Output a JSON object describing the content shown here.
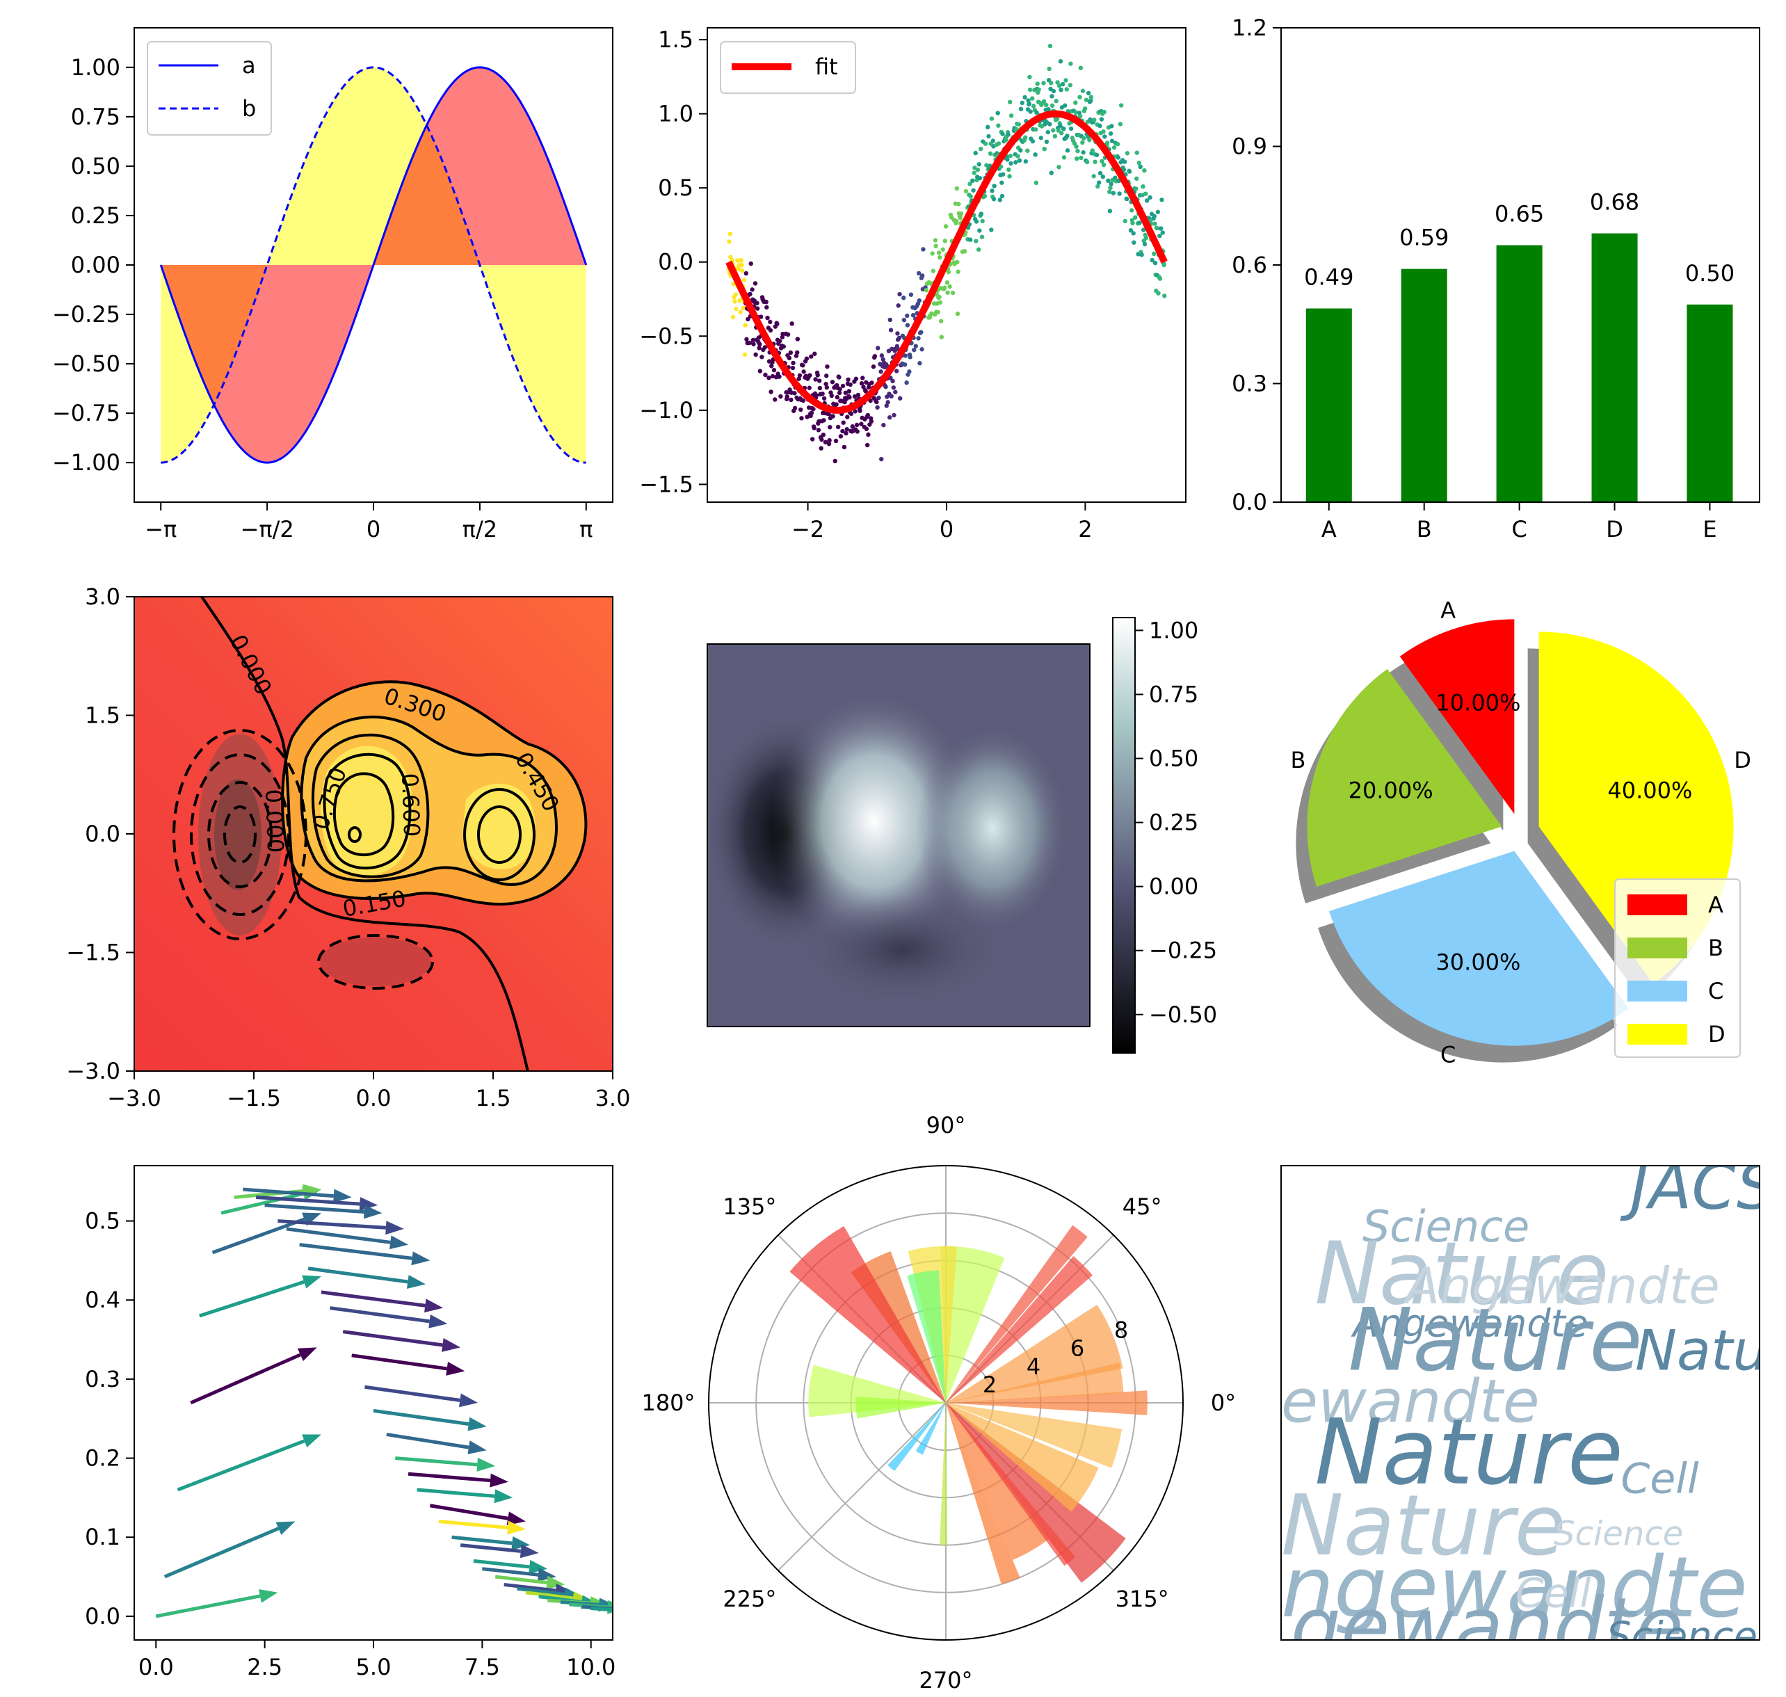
{
  "chart_data": [
    {
      "id": "fill-between",
      "type": "line",
      "title": "",
      "xlabel": "",
      "ylabel": "",
      "xlim": [
        -3.5343,
        3.5343
      ],
      "ylim": [
        -1.2,
        1.2
      ],
      "xticks": [
        -3.14159,
        -1.5708,
        0,
        1.5708,
        3.14159
      ],
      "xtick_labels": [
        "−π",
        "−π/2",
        "0",
        "π/2",
        "π"
      ],
      "yticks": [
        1.0,
        0.75,
        0.5,
        0.25,
        0.0,
        -0.25,
        -0.5,
        -0.75,
        -1.0
      ],
      "ytick_labels": [
        "1.00",
        "0.75",
        "0.50",
        "0.25",
        "0.00",
        "−0.25",
        "−0.50",
        "−0.75",
        "−1.00"
      ],
      "series": [
        {
          "name": "a",
          "function": "sin(x)",
          "style": "solid",
          "color": "#0000ff"
        },
        {
          "name": "b",
          "function": "cos(x)",
          "style": "dashed",
          "color": "#0000ff"
        }
      ],
      "fills": [
        {
          "between": "a and 0",
          "color": "#ff0000",
          "alpha": 0.5
        },
        {
          "between": "b and 0",
          "color": "#ffff00",
          "alpha": 0.5
        }
      ],
      "legend": {
        "position": "top-left",
        "entries": [
          "a",
          "b"
        ]
      },
      "grid": false
    },
    {
      "id": "scatter-fit",
      "type": "scatter",
      "title": "",
      "xlim": [
        -3.45,
        3.45
      ],
      "ylim": [
        -1.62,
        1.58
      ],
      "xticks": [
        -2,
        0,
        2
      ],
      "xtick_labels": [
        "−2",
        "0",
        "2"
      ],
      "yticks": [
        1.5,
        1.0,
        0.5,
        0.0,
        -0.5,
        -1.0,
        -1.5
      ],
      "ytick_labels": [
        "1.5",
        "1.0",
        "0.5",
        "0.0",
        "−0.5",
        "−1.0",
        "−1.5"
      ],
      "points": "1000 noisy samples of y = sin(x) + noise, x in [-π, π], colored by viridis",
      "fit_line": {
        "name": "fit",
        "function": "sin(x)",
        "color": "#ff0000"
      },
      "legend": {
        "position": "top-left",
        "entries": [
          "fit"
        ]
      },
      "grid": false
    },
    {
      "id": "bar",
      "type": "bar",
      "title": "",
      "categories": [
        "A",
        "B",
        "C",
        "D",
        "E"
      ],
      "values": [
        0.49,
        0.59,
        0.65,
        0.68,
        0.5
      ],
      "value_labels": [
        "0.49",
        "0.59",
        "0.65",
        "0.68",
        "0.50"
      ],
      "ylim": [
        0,
        1.2
      ],
      "yticks": [
        0.0,
        0.3,
        0.6,
        0.9,
        1.2
      ],
      "ytick_labels": [
        "0.0",
        "0.3",
        "0.6",
        "0.9",
        "1.2"
      ],
      "color": "#008000",
      "grid": false
    },
    {
      "id": "contour",
      "type": "heatmap",
      "title": "",
      "xlim": [
        -3,
        3
      ],
      "ylim": [
        -3,
        3
      ],
      "xticks": [
        -3,
        -1.5,
        0,
        1.5,
        3
      ],
      "xtick_labels": [
        "−3.0",
        "−1.5",
        "0.0",
        "1.5",
        "3.0"
      ],
      "yticks": [
        3,
        1.5,
        0,
        -1.5,
        -3
      ],
      "ytick_labels": [
        "3.0",
        "1.5",
        "0.0",
        "−1.5",
        "−3.0"
      ],
      "contour_labels": [
        "0.000",
        "0.300",
        "0.450",
        "0.600",
        "0.750",
        "0.150",
        "0.000"
      ],
      "colormap": "autumn",
      "grid": false
    },
    {
      "id": "image",
      "type": "heatmap",
      "title": "",
      "colormap": "bone",
      "colorbar_ticks": [
        1.0,
        0.75,
        0.5,
        0.25,
        0.0,
        -0.25,
        -0.5
      ],
      "colorbar_labels": [
        "1.00",
        "0.75",
        "0.50",
        "0.25",
        "0.00",
        "−0.25",
        "−0.50"
      ],
      "colorbar_range": [
        -0.65,
        1.05
      ]
    },
    {
      "id": "pie",
      "type": "pie",
      "title": "",
      "labels": [
        "A",
        "B",
        "C",
        "D"
      ],
      "values": [
        10,
        20,
        30,
        40
      ],
      "pct_labels": [
        "10.00%",
        "20.00%",
        "30.00%",
        "40.00%"
      ],
      "colors": [
        "#ff0000",
        "#9acd32",
        "#87cefa",
        "#ffff00"
      ],
      "explode": [
        0.1,
        0.1,
        0.1,
        0.1
      ],
      "shadow": true,
      "legend": {
        "position": "lower-right",
        "entries": [
          "A",
          "B",
          "C",
          "D"
        ]
      }
    },
    {
      "id": "quiver",
      "type": "scatter",
      "title": "",
      "xlim": [
        -0.5,
        10.5
      ],
      "ylim": [
        -0.03,
        0.57
      ],
      "xticks": [
        0,
        2.5,
        5,
        7.5,
        10
      ],
      "xtick_labels": [
        "0.0",
        "2.5",
        "5.0",
        "7.5",
        "10.0"
      ],
      "yticks": [
        0.5,
        0.4,
        0.3,
        0.2,
        0.1,
        0.0
      ],
      "ytick_labels": [
        "0.5",
        "0.4",
        "0.3",
        "0.2",
        "0.1",
        "0.0"
      ],
      "arrows": [
        {
          "x": 0.0,
          "y": 0.0,
          "u": 2.8,
          "v": 0.03
        },
        {
          "x": 0.2,
          "y": 0.05,
          "u": 3.0,
          "v": 0.07
        },
        {
          "x": 0.5,
          "y": 0.16,
          "u": 3.3,
          "v": 0.07
        },
        {
          "x": 0.8,
          "y": 0.27,
          "u": 2.9,
          "v": 0.07
        },
        {
          "x": 1.0,
          "y": 0.38,
          "u": 2.8,
          "v": 0.05
        },
        {
          "x": 1.3,
          "y": 0.46,
          "u": 2.5,
          "v": 0.05
        },
        {
          "x": 1.5,
          "y": 0.51,
          "u": 2.3,
          "v": 0.03
        },
        {
          "x": 1.8,
          "y": 0.53,
          "u": 2.0,
          "v": 0.01
        },
        {
          "x": 2.0,
          "y": 0.54,
          "u": 2.5,
          "v": -0.01
        },
        {
          "x": 2.3,
          "y": 0.53,
          "u": 2.8,
          "v": -0.01
        },
        {
          "x": 2.5,
          "y": 0.52,
          "u": 2.7,
          "v": -0.01
        },
        {
          "x": 2.8,
          "y": 0.5,
          "u": 2.9,
          "v": -0.01
        },
        {
          "x": 3.0,
          "y": 0.49,
          "u": 2.8,
          "v": -0.02
        },
        {
          "x": 3.3,
          "y": 0.47,
          "u": 3.0,
          "v": -0.02
        },
        {
          "x": 3.5,
          "y": 0.44,
          "u": 2.7,
          "v": -0.02
        },
        {
          "x": 3.8,
          "y": 0.41,
          "u": 2.8,
          "v": -0.02
        },
        {
          "x": 4.0,
          "y": 0.39,
          "u": 2.7,
          "v": -0.02
        },
        {
          "x": 4.3,
          "y": 0.36,
          "u": 2.7,
          "v": -0.02
        },
        {
          "x": 4.5,
          "y": 0.33,
          "u": 2.6,
          "v": -0.02
        },
        {
          "x": 4.8,
          "y": 0.29,
          "u": 2.6,
          "v": -0.02
        },
        {
          "x": 5.0,
          "y": 0.26,
          "u": 2.6,
          "v": -0.02
        },
        {
          "x": 5.3,
          "y": 0.23,
          "u": 2.3,
          "v": -0.02
        },
        {
          "x": 5.5,
          "y": 0.2,
          "u": 2.3,
          "v": -0.01
        },
        {
          "x": 5.8,
          "y": 0.18,
          "u": 2.3,
          "v": -0.01
        },
        {
          "x": 6.0,
          "y": 0.16,
          "u": 2.2,
          "v": -0.01
        },
        {
          "x": 6.3,
          "y": 0.14,
          "u": 2.2,
          "v": -0.02
        },
        {
          "x": 6.5,
          "y": 0.12,
          "u": 2.0,
          "v": -0.01
        },
        {
          "x": 6.8,
          "y": 0.1,
          "u": 1.8,
          "v": -0.01
        },
        {
          "x": 7.0,
          "y": 0.09,
          "u": 1.8,
          "v": -0.01
        },
        {
          "x": 7.3,
          "y": 0.07,
          "u": 1.7,
          "v": -0.01
        },
        {
          "x": 7.5,
          "y": 0.06,
          "u": 1.7,
          "v": -0.01
        },
        {
          "x": 7.8,
          "y": 0.05,
          "u": 1.6,
          "v": -0.01
        },
        {
          "x": 8.0,
          "y": 0.04,
          "u": 1.6,
          "v": -0.01
        },
        {
          "x": 8.3,
          "y": 0.035,
          "u": 1.5,
          "v": -0.01
        },
        {
          "x": 8.5,
          "y": 0.03,
          "u": 1.5,
          "v": -0.01
        },
        {
          "x": 8.8,
          "y": 0.025,
          "u": 1.4,
          "v": -0.01
        },
        {
          "x": 9.0,
          "y": 0.02,
          "u": 1.4,
          "v": -0.005
        },
        {
          "x": 9.3,
          "y": 0.018,
          "u": 1.3,
          "v": -0.005
        },
        {
          "x": 9.5,
          "y": 0.015,
          "u": 1.3,
          "v": -0.005
        },
        {
          "x": 9.8,
          "y": 0.012,
          "u": 1.2,
          "v": -0.005
        },
        {
          "x": 10.0,
          "y": 0.01,
          "u": 1.2,
          "v": -0.005
        }
      ],
      "colormap": "viridis",
      "grid": false
    },
    {
      "id": "polar-bar",
      "type": "bar",
      "title": "",
      "angle_labels": [
        "0°",
        "45°",
        "90°",
        "135°",
        "180°",
        "225°",
        "270°",
        "315°"
      ],
      "radial_ticks": [
        2,
        4,
        6,
        8
      ],
      "radial_labels": [
        "2",
        "4",
        "6",
        "8"
      ],
      "rmax": 10,
      "bars": [
        {
          "theta": 0,
          "r": 8.5,
          "width": 7,
          "color": "#fa7f3c"
        },
        {
          "theta": 8,
          "r": 7.5,
          "width": 10,
          "color": "#fba04f"
        },
        {
          "theta": 22,
          "r": 7.6,
          "width": 22,
          "color": "#fb9f4c"
        },
        {
          "theta": 45,
          "r": 8.2,
          "width": 8,
          "color": "#f24a3f"
        },
        {
          "theta": 52,
          "r": 9.2,
          "width": 5,
          "color": "#f25a43"
        },
        {
          "theta": 80,
          "r": 6.6,
          "width": 24,
          "color": "#c8ff5a"
        },
        {
          "theta": 95,
          "r": 6.6,
          "width": 18,
          "color": "#f6df3d"
        },
        {
          "theta": 100,
          "r": 5.6,
          "width": 14,
          "color": "#6aff7a"
        },
        {
          "theta": 118,
          "r": 6.8,
          "width": 16,
          "color": "#f2742f"
        },
        {
          "theta": 130,
          "r": 8.6,
          "width": 20,
          "color": "#f13c38"
        },
        {
          "theta": 175,
          "r": 5.8,
          "width": 22,
          "color": "#c8ff5a"
        },
        {
          "theta": 183,
          "r": 3.8,
          "width": 14,
          "color": "#a5ff3c"
        },
        {
          "theta": 230,
          "r": 3.6,
          "width": 6,
          "color": "#39c8ff"
        },
        {
          "theta": 242,
          "r": 2.4,
          "width": 8,
          "color": "#39c8ff"
        },
        {
          "theta": 269,
          "r": 6.0,
          "width": 3,
          "color": "#bde843"
        },
        {
          "theta": 290,
          "r": 8.0,
          "width": 6,
          "color": "#fb7a30"
        },
        {
          "theta": 300,
          "r": 7.2,
          "width": 14,
          "color": "#fb7d39"
        },
        {
          "theta": 315,
          "r": 9.5,
          "width": 16,
          "color": "#e63838"
        },
        {
          "theta": 328,
          "r": 7.0,
          "width": 18,
          "color": "#fbb44a"
        },
        {
          "theta": 345,
          "r": 7.5,
          "width": 13,
          "color": "#fbbe57"
        },
        {
          "theta": 308,
          "r": 8.5,
          "width": 4,
          "color": "#f24a3f"
        }
      ],
      "grid": true
    },
    {
      "id": "word-cloud",
      "type": "table",
      "title": "",
      "words": [
        {
          "text": "JACS",
          "x": 0.73,
          "y": 0.09,
          "size": 90,
          "color": "#5b87a3"
        },
        {
          "text": "Science",
          "x": 0.17,
          "y": 0.16,
          "size": 62,
          "color": "#9ab6c9"
        },
        {
          "text": "Nature",
          "x": 0.07,
          "y": 0.29,
          "size": 124,
          "color": "#b5c8d5"
        },
        {
          "text": "Angewandte",
          "x": 0.26,
          "y": 0.29,
          "size": 72,
          "color": "#c5d4de"
        },
        {
          "text": "Angewandte",
          "x": 0.15,
          "y": 0.36,
          "size": 54,
          "color": "#6c93ad"
        },
        {
          "text": "Nature",
          "x": 0.14,
          "y": 0.43,
          "size": 124,
          "color": "#7d9fb6"
        },
        {
          "text": "Natu",
          "x": 0.74,
          "y": 0.43,
          "size": 80,
          "color": "#5b87a3"
        },
        {
          "text": "ewandte",
          "x": 0.0,
          "y": 0.54,
          "size": 86,
          "color": "#aac0cf"
        },
        {
          "text": "Nature",
          "x": 0.07,
          "y": 0.67,
          "size": 130,
          "color": "#5b87a3"
        },
        {
          "text": "Cell",
          "x": 0.71,
          "y": 0.69,
          "size": 60,
          "color": "#8aa9bf"
        },
        {
          "text": "Nature",
          "x": 0.0,
          "y": 0.82,
          "size": 120,
          "color": "#b5c8d5"
        },
        {
          "text": "Science",
          "x": 0.57,
          "y": 0.8,
          "size": 48,
          "color": "#c5d4de"
        },
        {
          "text": "ngewandte",
          "x": 0.0,
          "y": 0.95,
          "size": 120,
          "color": "#9ab6c9"
        },
        {
          "text": "Cell",
          "x": 0.49,
          "y": 0.93,
          "size": 58,
          "color": "#c5d4de"
        },
        {
          "text": "gewandte",
          "x": 0.02,
          "y": 1.03,
          "size": 114,
          "color": "#8aa9bf"
        },
        {
          "text": "Science",
          "x": 0.68,
          "y": 1.02,
          "size": 56,
          "color": "#5b87a3"
        }
      ]
    }
  ]
}
